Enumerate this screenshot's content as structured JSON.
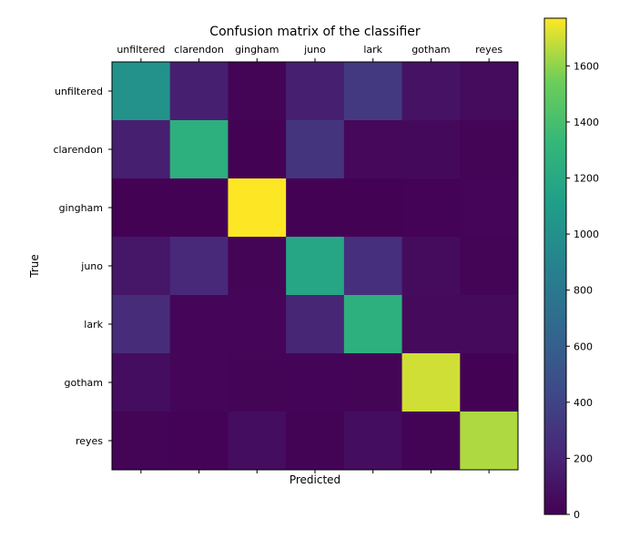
{
  "chart_data": {
    "type": "heatmap",
    "title": "Confusion matrix of the classifier",
    "xlabel": "Predicted",
    "ylabel": "True",
    "x_categories": [
      "unfiltered",
      "clarendon",
      "gingham",
      "juno",
      "lark",
      "gotham",
      "reyes"
    ],
    "y_categories": [
      "unfiltered",
      "clarendon",
      "gingham",
      "juno",
      "lark",
      "gotham",
      "reyes"
    ],
    "values": [
      [
        1010,
        170,
        20,
        170,
        330,
        100,
        60
      ],
      [
        170,
        1260,
        5,
        300,
        40,
        45,
        20
      ],
      [
        5,
        5,
        1770,
        5,
        5,
        10,
        30
      ],
      [
        120,
        230,
        20,
        1180,
        270,
        60,
        20
      ],
      [
        250,
        30,
        30,
        210,
        1260,
        50,
        50
      ],
      [
        70,
        30,
        20,
        25,
        20,
        1700,
        5
      ],
      [
        20,
        10,
        70,
        15,
        70,
        15,
        1650
      ]
    ],
    "colormap": "viridis",
    "colorbar": {
      "range": [
        0,
        1770
      ],
      "ticks": [
        0,
        200,
        400,
        600,
        800,
        1000,
        1200,
        1400,
        1600
      ]
    },
    "x_tick_position": "top",
    "grid": false
  }
}
